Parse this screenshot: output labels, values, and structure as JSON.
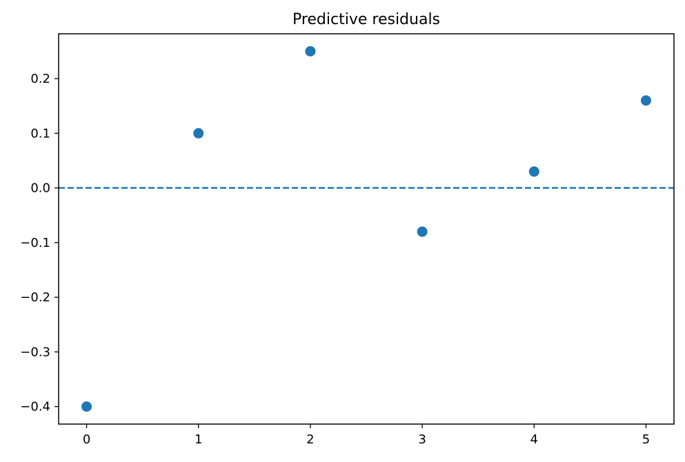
{
  "chart_data": {
    "type": "scatter",
    "title": "Predictive residuals",
    "xlabel": "",
    "ylabel": "",
    "x": [
      0,
      1,
      2,
      3,
      4,
      5
    ],
    "y": [
      -0.4,
      0.1,
      0.25,
      -0.08,
      0.03,
      0.16
    ],
    "xlim": [
      -0.25,
      5.25
    ],
    "ylim": [
      -0.432,
      0.282
    ],
    "xticks": [
      0,
      1,
      2,
      3,
      4,
      5
    ],
    "xtick_labels": [
      "0",
      "1",
      "2",
      "3",
      "4",
      "5"
    ],
    "yticks": [
      -0.4,
      -0.3,
      -0.2,
      -0.1,
      0.0,
      0.1,
      0.2
    ],
    "ytick_labels": [
      "−0.4",
      "−0.3",
      "−0.2",
      "−0.1",
      "0.0",
      "0.1",
      "0.2"
    ],
    "reference_line": {
      "y": 0.0,
      "style": "dashed"
    },
    "grid": false,
    "colors": {
      "points": "#1f77b4",
      "reference_line": "#1f77b4",
      "axes": "#000000"
    }
  }
}
